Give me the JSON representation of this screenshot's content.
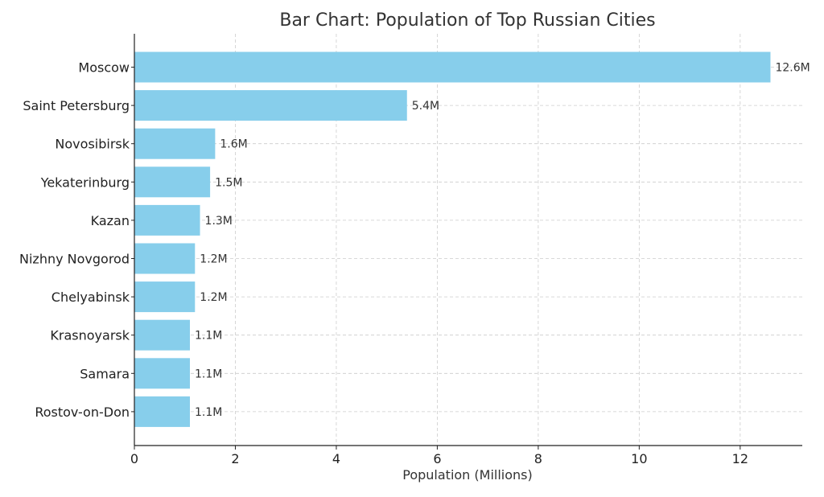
{
  "chart_data": {
    "type": "bar",
    "orientation": "horizontal",
    "title": "Bar Chart: Population of Top Russian Cities",
    "xlabel": "Population (Millions)",
    "ylabel": "",
    "categories": [
      "Moscow",
      "Saint Petersburg",
      "Novosibirsk",
      "Yekaterinburg",
      "Kazan",
      "Nizhny Novgorod",
      "Chelyabinsk",
      "Krasnoyarsk",
      "Samara",
      "Rostov-on-Don"
    ],
    "values": [
      12.6,
      5.4,
      1.6,
      1.5,
      1.3,
      1.2,
      1.2,
      1.1,
      1.1,
      1.1
    ],
    "data_labels": [
      "12.6M",
      "5.4M",
      "1.6M",
      "1.5M",
      "1.3M",
      "1.2M",
      "1.2M",
      "1.1M",
      "1.1M",
      "1.1M"
    ],
    "xlim": [
      0,
      13.23
    ],
    "xticks": [
      0,
      2,
      4,
      6,
      8,
      10,
      12
    ],
    "xtick_labels": [
      "0",
      "2",
      "4",
      "6",
      "8",
      "10",
      "12"
    ],
    "grid": true,
    "grid_style": "dashed",
    "legend": "none",
    "bar_color": "#87CEEB"
  }
}
